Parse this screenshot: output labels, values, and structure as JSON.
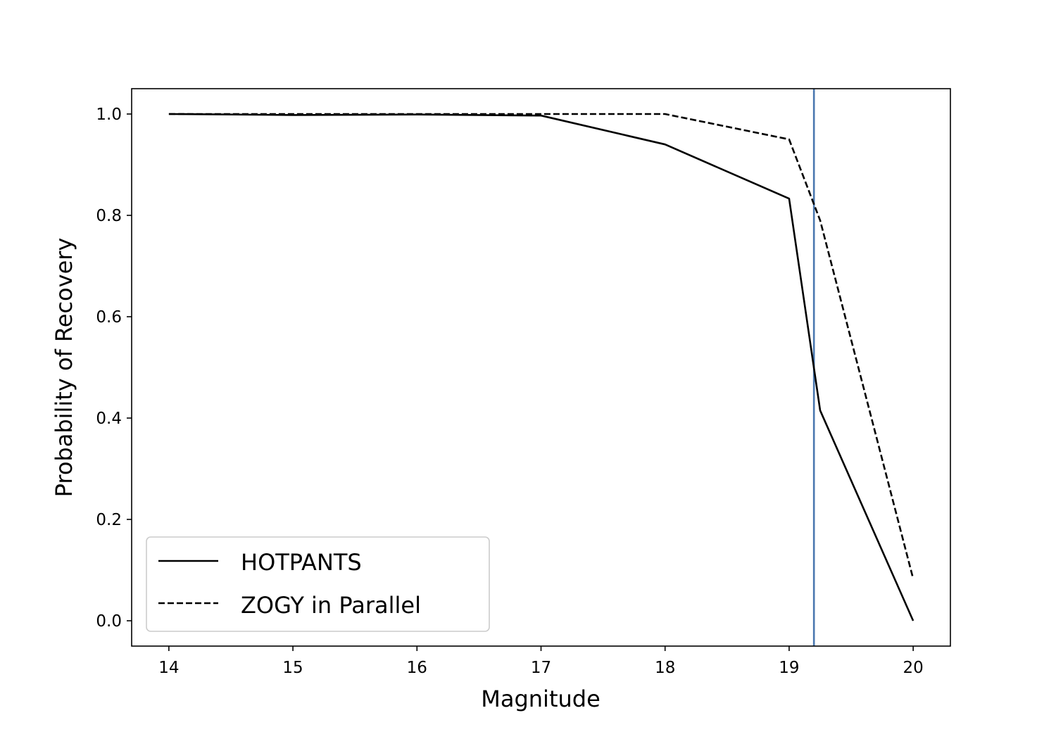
{
  "chart_data": {
    "type": "line",
    "title": "",
    "xlabel": "Magnitude",
    "ylabel": "Probability of Recovery",
    "xlim": [
      13.7,
      20.3
    ],
    "ylim": [
      -0.05,
      1.05
    ],
    "xticks": [
      14,
      15,
      16,
      17,
      18,
      19,
      20
    ],
    "xtick_labels": [
      "14",
      "15",
      "16",
      "17",
      "18",
      "19",
      "20"
    ],
    "yticks": [
      0.0,
      0.2,
      0.4,
      0.6,
      0.8,
      1.0
    ],
    "ytick_labels": [
      "0.0",
      "0.2",
      "0.4",
      "0.6",
      "0.8",
      "1.0"
    ],
    "grid": false,
    "legend_position": "lower-left",
    "series": [
      {
        "name": "HOTPANTS",
        "line_style": "solid",
        "color": "#000000",
        "x": [
          14,
          15,
          16,
          17,
          18,
          19,
          19.25,
          20
        ],
        "y": [
          1.0,
          0.998,
          0.999,
          0.997,
          0.94,
          0.833,
          0.415,
          0.0
        ]
      },
      {
        "name": "ZOGY in Parallel",
        "line_style": "dashed",
        "color": "#000000",
        "x": [
          14,
          15,
          16,
          17,
          18,
          19,
          19.25,
          20
        ],
        "y": [
          1.0,
          1.0,
          1.0,
          1.0,
          1.0,
          0.95,
          0.79,
          0.083
        ]
      }
    ],
    "vertical_lines": [
      {
        "x": 19.2,
        "color": "#4a78b0"
      }
    ]
  }
}
